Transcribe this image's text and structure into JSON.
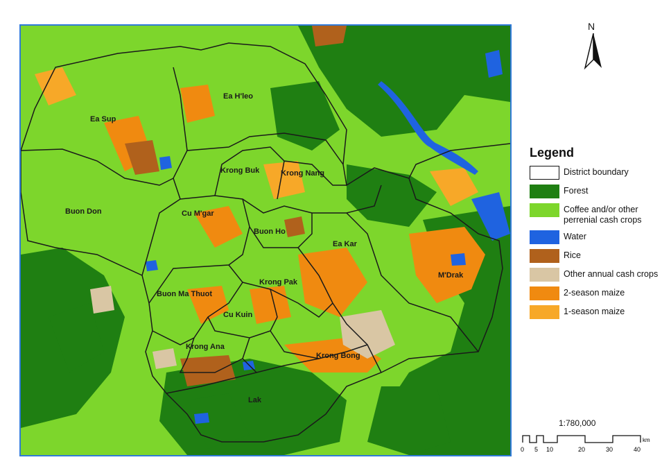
{
  "map": {
    "districts": [
      "Ea Sup",
      "Ea H'leo",
      "Krong Buk",
      "Krong Nang",
      "Buon Don",
      "Cu M'gar",
      "Buon Ho",
      "Ea Kar",
      "M'Drak",
      "Buon Ma Thuot",
      "Krong Pak",
      "Cu Kuin",
      "Krong Ana",
      "Krong Bong",
      "Lak"
    ]
  },
  "north_arrow": {
    "label": "N"
  },
  "legend": {
    "title": "Legend",
    "items": [
      {
        "label": "District boundary",
        "color": "#ffffff"
      },
      {
        "label": "Forest",
        "color": "#1f7f12"
      },
      {
        "label": "Coffee and/or other perrenial cash crops",
        "color": "#7dd62c"
      },
      {
        "label": "Water",
        "color": "#1f63e0"
      },
      {
        "label": "Rice",
        "color": "#b0611c"
      },
      {
        "label": "Other annual cash crops",
        "color": "#d9c6a4"
      },
      {
        "label": "2-season maize",
        "color": "#f08a10"
      },
      {
        "label": "1-season maize",
        "color": "#f7a828"
      }
    ]
  },
  "scale": {
    "ratio": "1:780,000",
    "unit": "km",
    "ticks": [
      "0",
      "5",
      "10",
      "20",
      "30",
      "40"
    ]
  }
}
